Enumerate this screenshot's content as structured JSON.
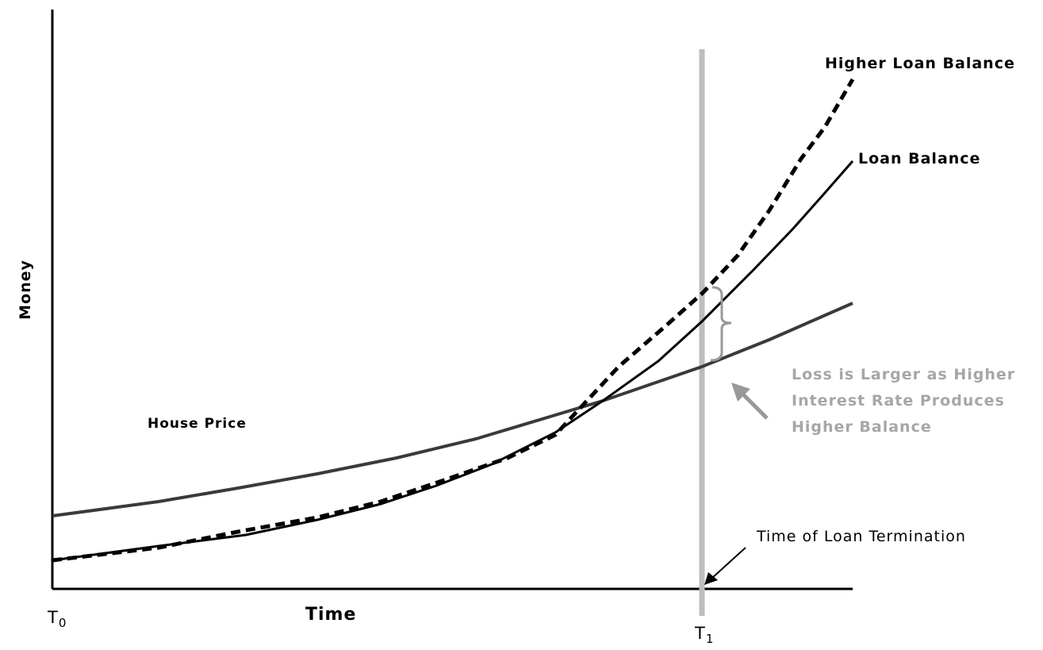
{
  "labels": {
    "higher_loan_balance": "Higher Loan Balance",
    "loan_balance": "Loan Balance",
    "house_price": "House Price",
    "y_axis": "Money",
    "x_axis": "Time",
    "t0": {
      "base": "T",
      "sub": "0"
    },
    "t1": {
      "base": "T",
      "sub": "1"
    },
    "termination": "Time of Loan Termination",
    "loss_note": [
      "Loss is Larger as  Higher",
      "Interest Rate Produces",
      "Higher Balance"
    ]
  }
}
